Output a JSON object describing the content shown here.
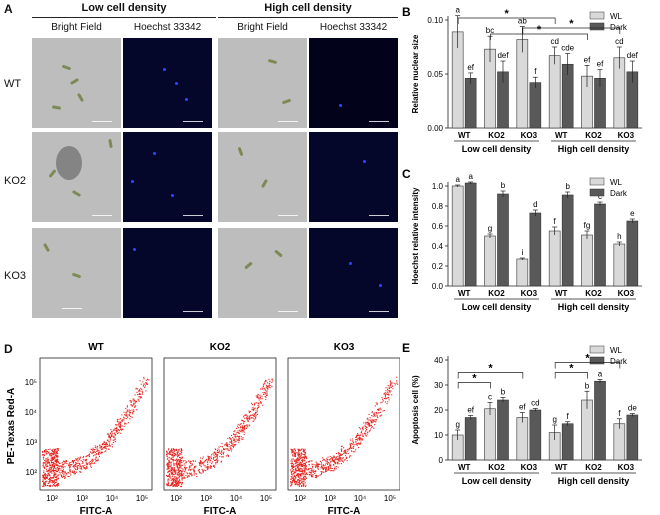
{
  "panel_a": {
    "label": "A",
    "groups": [
      "Low cell density",
      "High cell density"
    ],
    "columns": [
      "Bright Field",
      "Hoechst 33342",
      "Bright Field",
      "Hoechst 33342"
    ],
    "rows": [
      "WT",
      "KO2",
      "KO3"
    ]
  },
  "panel_d": {
    "label": "D",
    "ylabel": "PE-Texas Red-A",
    "xlabel": "FITC-A",
    "plots": [
      "WT",
      "KO2",
      "KO3"
    ],
    "ticks": [
      "10²",
      "10³",
      "10⁴",
      "10⁵"
    ]
  },
  "chart_data": [
    {
      "panel": "B",
      "type": "bar",
      "ylabel": "Relative nuclear size",
      "ylim": [
        0,
        0.1
      ],
      "yticks": [
        "0.00",
        "0.05",
        "0.10"
      ],
      "categories": [
        "WT",
        "KO2",
        "KO3",
        "WT",
        "KO2",
        "KO3"
      ],
      "groups": [
        "Low cell density",
        "High cell density"
      ],
      "legend": [
        "WL",
        "Dark"
      ],
      "colors": [
        "#d9d9d9",
        "#595959"
      ],
      "series": [
        {
          "name": "WL",
          "values": [
            0.089,
            0.073,
            0.082,
            0.067,
            0.048,
            0.065
          ],
          "errors": [
            0.015,
            0.012,
            0.012,
            0.008,
            0.01,
            0.01
          ],
          "letters": [
            "a",
            "bc",
            "ab",
            "cd",
            "ef",
            "cd"
          ]
        },
        {
          "name": "Dark",
          "values": [
            0.046,
            0.052,
            0.042,
            0.059,
            0.046,
            0.052
          ],
          "errors": [
            0.005,
            0.01,
            0.005,
            0.01,
            0.008,
            0.01
          ],
          "letters": [
            "ef",
            "def",
            "f",
            "cde",
            "ef",
            "def"
          ]
        }
      ],
      "significance": "*"
    },
    {
      "panel": "C",
      "type": "bar",
      "ylabel": "Hoechst relative intensity",
      "ylim": [
        0,
        1.0
      ],
      "yticks": [
        "0.0",
        "0.2",
        "0.4",
        "0.6",
        "0.8",
        "1.0"
      ],
      "categories": [
        "WT",
        "KO2",
        "KO3",
        "WT",
        "KO2",
        "KO3"
      ],
      "groups": [
        "Low cell density",
        "High cell density"
      ],
      "legend": [
        "WL",
        "Dark"
      ],
      "colors": [
        "#d9d9d9",
        "#595959"
      ],
      "series": [
        {
          "name": "WL",
          "values": [
            1.0,
            0.5,
            0.27,
            0.55,
            0.51,
            0.42
          ],
          "errors": [
            0.01,
            0.02,
            0.01,
            0.04,
            0.04,
            0.02
          ],
          "letters": [
            "a",
            "g",
            "i",
            "f",
            "fg",
            "h"
          ]
        },
        {
          "name": "Dark",
          "values": [
            1.03,
            0.92,
            0.73,
            0.91,
            0.82,
            0.65
          ],
          "errors": [
            0.01,
            0.03,
            0.03,
            0.03,
            0.02,
            0.02
          ],
          "letters": [
            "a",
            "b",
            "d",
            "b",
            "c",
            "e"
          ]
        }
      ]
    },
    {
      "panel": "E",
      "type": "bar",
      "ylabel": "Apoptosis cell (%)",
      "ylim": [
        0,
        40
      ],
      "yticks": [
        "0",
        "10",
        "20",
        "30",
        "40"
      ],
      "categories": [
        "WT",
        "KO2",
        "KO3",
        "WT",
        "KO2",
        "KO3"
      ],
      "groups": [
        "Low cell density",
        "High cell density"
      ],
      "legend": [
        "WL",
        "Dark"
      ],
      "colors": [
        "#d9d9d9",
        "#595959"
      ],
      "series": [
        {
          "name": "WL",
          "values": [
            10,
            20.5,
            17,
            11,
            24,
            14.5
          ],
          "errors": [
            2,
            2.5,
            2,
            3,
            3.5,
            2
          ],
          "letters": [
            "g",
            "c",
            "ef",
            "g",
            "b",
            "f"
          ]
        },
        {
          "name": "Dark",
          "values": [
            17,
            24,
            20,
            14.5,
            31.5,
            18
          ],
          "errors": [
            0.8,
            1,
            0.6,
            0.8,
            0.7,
            0.6
          ],
          "letters": [
            "ef",
            "b",
            "cd",
            "f",
            "a",
            "de"
          ]
        }
      ],
      "significance": "*"
    }
  ]
}
